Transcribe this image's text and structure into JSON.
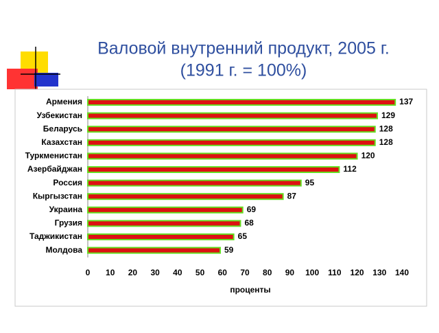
{
  "chart_data": {
    "type": "bar",
    "orientation": "horizontal",
    "title": "Валовой внутренний продукт, 2005 г.",
    "subtitle": "(1991 г. = 100%)",
    "xlabel": "проценты",
    "categories": [
      "Армения",
      "Узбекистан",
      "Беларусь",
      "Казахстан",
      "Туркменистан",
      "Азербайджан",
      "Россия",
      "Кыргызстан",
      "Украина",
      "Грузия",
      "Таджикистан",
      "Молдова"
    ],
    "values": [
      137,
      129,
      128,
      128,
      120,
      112,
      95,
      87,
      69,
      68,
      65,
      59
    ],
    "color": "#dd1111",
    "edgecolor": "#66dd22",
    "xlim": [
      0,
      140
    ],
    "xticks": [
      0,
      10,
      20,
      30,
      40,
      50,
      60,
      70,
      80,
      90,
      100,
      110,
      120,
      130,
      140
    ],
    "grid": false
  }
}
